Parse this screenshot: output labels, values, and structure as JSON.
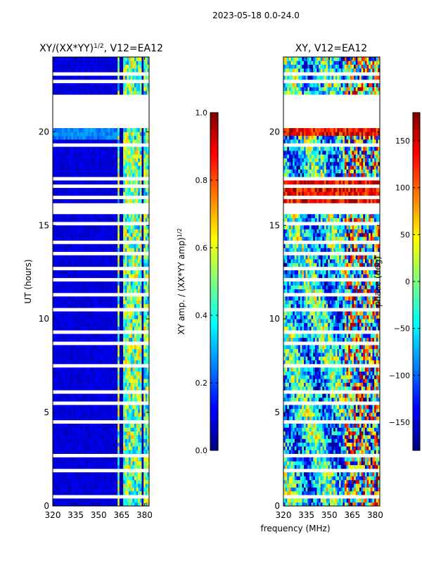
{
  "suptitle": "2023-05-18 0.0-24.0",
  "chart_data": [
    {
      "type": "heatmap",
      "title": "XY/(XX*YY)",
      "title_exponent": "1/2",
      "title_suffix": ", V12=EA12",
      "xlabel": "",
      "ylabel": "UT (hours)",
      "xlim": [
        320,
        383
      ],
      "ylim": [
        0,
        24
      ],
      "xticks": [
        320,
        335,
        350,
        365,
        380
      ],
      "yticks": [
        0,
        5,
        10,
        15,
        20
      ],
      "colormap": "jet",
      "colorbar": {
        "label": "XY amp. / (XX*YY amp)",
        "label_exponent": "1/2",
        "vmin": 0.0,
        "vmax": 1.0,
        "ticks": [
          "0.0",
          "0.2",
          "0.4",
          "0.6",
          "0.8",
          "1.0"
        ]
      }
    },
    {
      "type": "heatmap",
      "title": "XY, V12=EA12",
      "xlabel": "frequency (MHz)",
      "ylabel": "",
      "xlim": [
        320,
        383
      ],
      "ylim": [
        0,
        24
      ],
      "xticks": [
        320,
        335,
        350,
        365,
        380
      ],
      "yticks": [
        0,
        5,
        10,
        15,
        20
      ],
      "colormap": "jet",
      "colorbar": {
        "label": "phase (deg)",
        "vmin": -180,
        "vmax": 180,
        "ticks": [
          "−150",
          "−100",
          "−50",
          "0",
          "50",
          "100",
          "150"
        ]
      }
    }
  ],
  "data_gaps_hours": [
    [
      0.5,
      0.6
    ],
    [
      1.4,
      1.45
    ],
    [
      1.9,
      2.0
    ],
    [
      2.7,
      2.78
    ],
    [
      3.2,
      3.3
    ],
    [
      3.8,
      3.85
    ],
    [
      4.4,
      4.5
    ],
    [
      4.8,
      4.85
    ],
    [
      5.4,
      5.5
    ],
    [
      6.0,
      6.1
    ],
    [
      6.4,
      6.45
    ],
    [
      7.5,
      7.55
    ],
    [
      8.0,
      8.05
    ],
    [
      8.7,
      8.75
    ],
    [
      9.3,
      9.35
    ],
    [
      10.0,
      10.05
    ],
    [
      10.4,
      10.6
    ],
    [
      11.3,
      11.35
    ],
    [
      12.1,
      12.15
    ],
    [
      12.7,
      12.8
    ],
    [
      13.5,
      13.55
    ],
    [
      14.1,
      14.15
    ],
    [
      14.6,
      14.65
    ],
    [
      15.0,
      15.1
    ],
    [
      15.6,
      16.1
    ],
    [
      16.5,
      16.55
    ],
    [
      17.1,
      17.2
    ],
    [
      17.5,
      17.6
    ],
    [
      18.0,
      18.05
    ],
    [
      18.4,
      18.45
    ],
    [
      18.8,
      18.85
    ],
    [
      19.2,
      19.4
    ],
    [
      20.3,
      22.0
    ],
    [
      22.6,
      22.7
    ],
    [
      23.1,
      23.15
    ]
  ]
}
